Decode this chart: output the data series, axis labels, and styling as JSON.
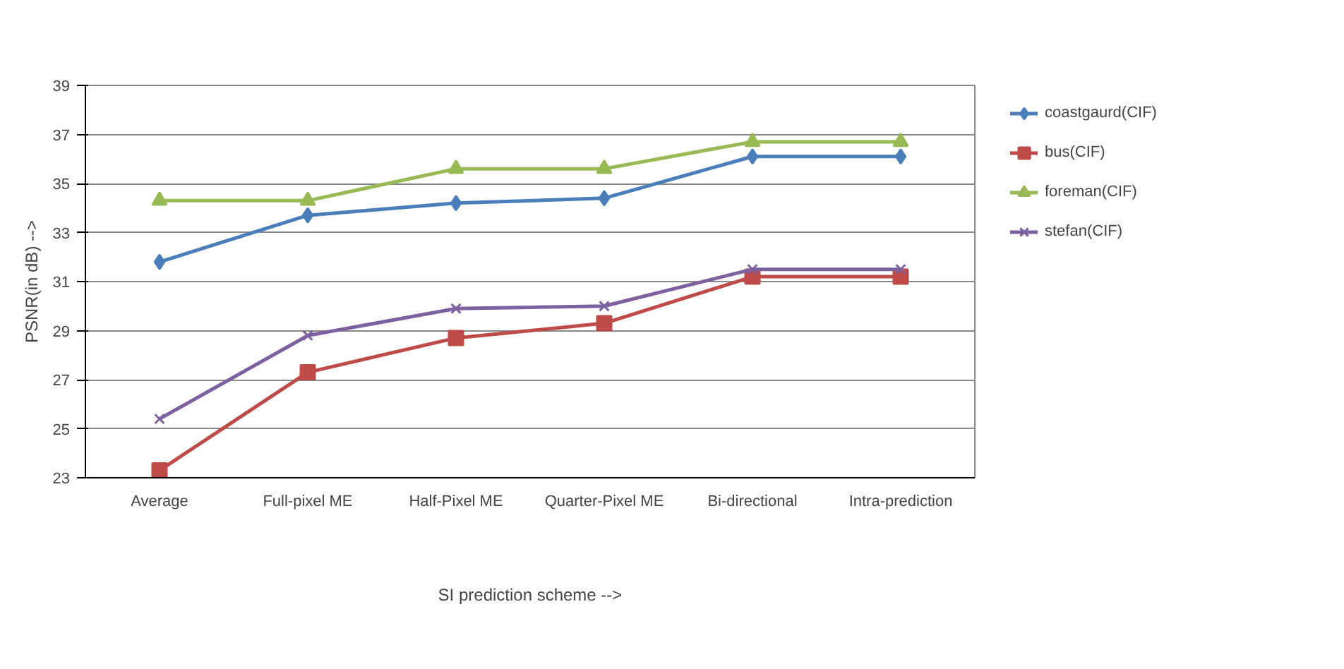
{
  "chart_data": {
    "type": "line",
    "xlabel": "SI prediction scheme -->",
    "ylabel": "PSNR(in dB) -->",
    "categories": [
      "Average",
      "Full-pixel ME",
      "Half-Pixel ME",
      "Quarter-Pixel ME",
      "Bi-directional",
      "Intra-prediction"
    ],
    "series": [
      {
        "name": "coastgaurd(CIF)",
        "color": "#4a7ebb",
        "marker": "diamond",
        "values": [
          31.8,
          33.7,
          34.2,
          34.4,
          36.1,
          36.1
        ]
      },
      {
        "name": "bus(CIF)",
        "color": "#be4b48",
        "marker": "square",
        "values": [
          23.3,
          27.3,
          28.7,
          29.3,
          31.2,
          31.2
        ]
      },
      {
        "name": "foreman(CIF)",
        "color": "#98b954",
        "marker": "triangle",
        "values": [
          34.3,
          34.3,
          35.6,
          35.6,
          36.7,
          36.7
        ]
      },
      {
        "name": "stefan(CIF)",
        "color": "#7d60a0",
        "marker": "cross",
        "values": [
          25.4,
          28.8,
          29.9,
          30.0,
          31.5,
          31.5
        ]
      }
    ],
    "ylim": [
      23,
      39
    ],
    "yticks": [
      23,
      25,
      27,
      29,
      31,
      33,
      35,
      37,
      39
    ],
    "grid": "y",
    "legend": "right"
  }
}
